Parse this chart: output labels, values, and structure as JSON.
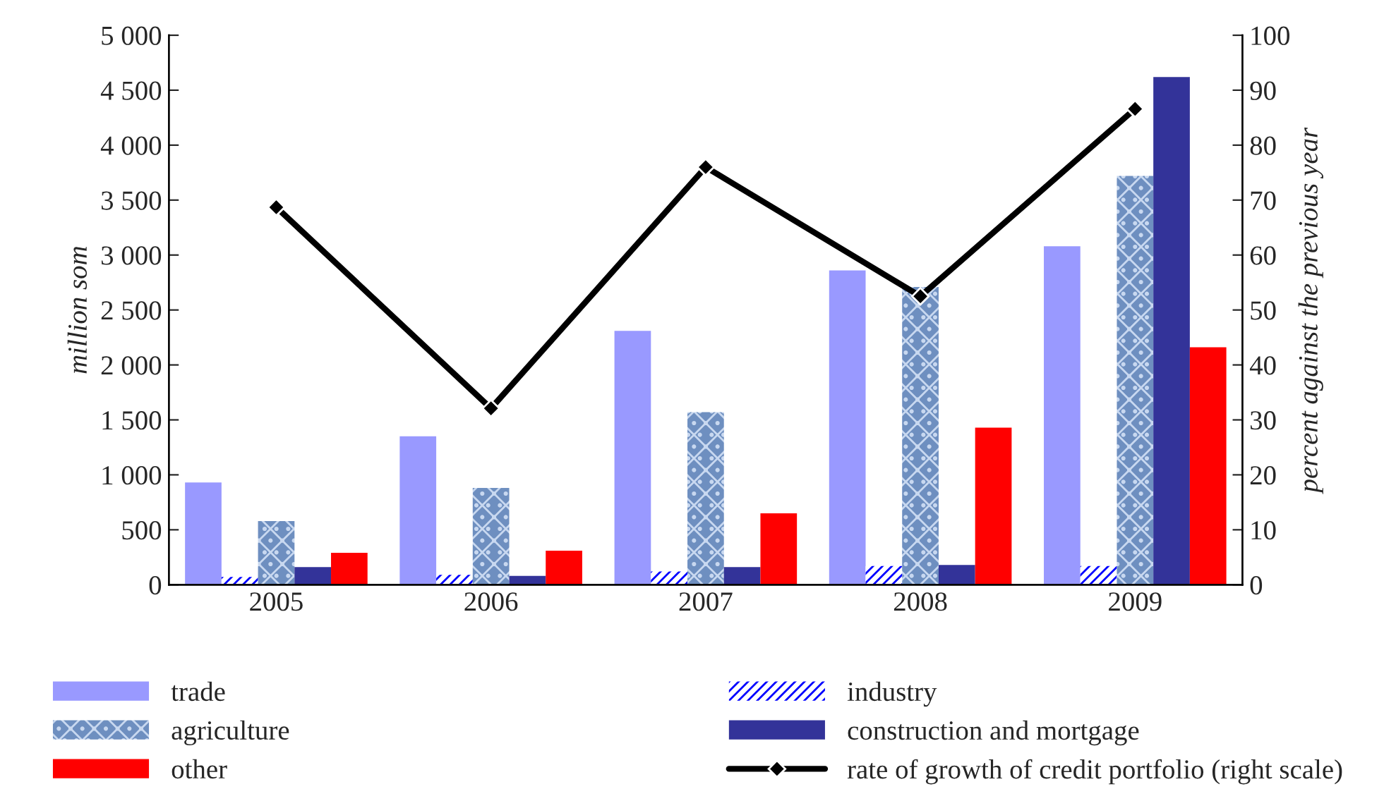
{
  "chart_data": {
    "type": "bar",
    "categories": [
      "2005",
      "2006",
      "2007",
      "2008",
      "2009"
    ],
    "ylabel": "million som",
    "y2label": "percent against the previous year",
    "ylim": [
      0,
      5000
    ],
    "yticks": [
      0,
      500,
      {
        "value": 1000,
        "label": "1 000"
      },
      {
        "value": 1500,
        "label": "1 500"
      },
      {
        "value": 2000,
        "label": "2 000"
      },
      {
        "value": 2500,
        "label": "2 500"
      },
      {
        "value": 3000,
        "label": "3 000"
      },
      {
        "value": 3500,
        "label": "3 500"
      },
      {
        "value": 4000,
        "label": "4 000"
      },
      {
        "value": 4500,
        "label": "4 500"
      },
      {
        "value": 5000,
        "label": "5 000"
      }
    ],
    "y2lim": [
      0,
      100
    ],
    "y2ticks": [
      0,
      10,
      20,
      30,
      40,
      50,
      60,
      70,
      80,
      90,
      100
    ],
    "legend": "bottom",
    "series": [
      {
        "name": "trade",
        "color": "#9999ff",
        "values": [
          930,
          1350,
          2310,
          2860,
          3080
        ]
      },
      {
        "name": "industry",
        "color": "#0000ff",
        "values": [
          70,
          90,
          120,
          170,
          170
        ]
      },
      {
        "name": "agriculture",
        "color": "#6e8fc0",
        "values": [
          580,
          880,
          1570,
          2710,
          3720
        ]
      },
      {
        "name": "construction and mortgage",
        "color": "#333399",
        "values": [
          160,
          80,
          160,
          180,
          4620
        ]
      },
      {
        "name": "other",
        "color": "#ff0000",
        "values": [
          290,
          310,
          650,
          1430,
          2160
        ]
      },
      {
        "name": "rate of growth of credit portfolio (right scale)",
        "type": "line",
        "axis": "y2",
        "color": "#000000",
        "marker": "diamond",
        "values": [
          68.7,
          32.1,
          76.0,
          52.5,
          86.6
        ]
      }
    ]
  }
}
